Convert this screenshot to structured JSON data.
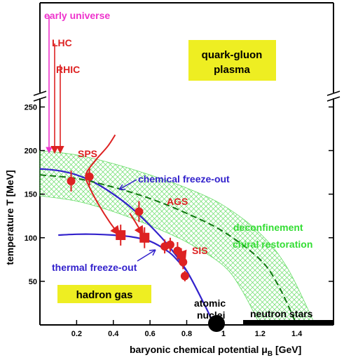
{
  "chart_data": {
    "type": "scatter",
    "title": "",
    "xlabel": "baryonic chemical potential μ_B [GeV]",
    "ylabel": "temperature T [MeV]",
    "xlim": [
      0,
      1.6
    ],
    "ylim": [
      0,
      260
    ],
    "y_axis_break": "above 260 MeV (broken axis)",
    "x_ticks": [
      0.2,
      0.4,
      0.6,
      0.8,
      1,
      1.2,
      1.4
    ],
    "y_ticks": [
      50,
      100,
      150,
      200,
      250
    ],
    "grid": false,
    "legend": "none",
    "region_labels": {
      "qgp_line1": "quark-gluon",
      "qgp_line2": "plasma",
      "hadron_gas": "hadron gas",
      "deconfinement": "deconfinement",
      "chiral": "chiral restoration",
      "atomic_line1": "atomic",
      "atomic_line2": "nuclei",
      "neutron_stars": "neutron stars"
    },
    "annotations": {
      "early_universe": "early universe",
      "lhc": "LHC",
      "rhic": "RHIC",
      "sps": "SPS",
      "ags": "AGS",
      "sis": "SIS",
      "chemical_freezeout": "chemical freeze-out",
      "thermal_freezeout": "thermal freeze-out"
    },
    "series": [
      {
        "name": "chemical freeze-out",
        "kind": "curve",
        "color": "#3322cc",
        "x": [
          0,
          0.1,
          0.2,
          0.3,
          0.4,
          0.5,
          0.6,
          0.7,
          0.8,
          0.9,
          0.95
        ],
        "y": [
          179,
          177,
          172,
          163,
          150,
          134,
          114,
          91,
          62,
          22,
          0
        ]
      },
      {
        "name": "thermal freeze-out",
        "kind": "curve",
        "color": "#3322cc",
        "x": [
          0.1,
          0.2,
          0.3,
          0.4,
          0.5,
          0.6,
          0.7,
          0.75,
          0.8
        ],
        "y": [
          103,
          104,
          104,
          103,
          101,
          96,
          84,
          74,
          62
        ]
      },
      {
        "name": "deconfinement / chiral restoration",
        "kind": "curve-dashed",
        "color": "#117711",
        "x": [
          0,
          0.2,
          0.4,
          0.6,
          0.8,
          1.0,
          1.2,
          1.3,
          1.4
        ],
        "y": [
          172,
          168,
          158,
          145,
          128,
          107,
          75,
          45,
          0
        ]
      },
      {
        "name": "chemical freeze-out points",
        "kind": "circles",
        "color": "#dd2222",
        "x": [
          0.17,
          0.27,
          0.54,
          0.68,
          0.71,
          0.75,
          0.77,
          0.78,
          0.79
        ],
        "y": [
          165,
          170,
          130,
          90,
          92,
          85,
          80,
          72,
          56
        ],
        "err": [
          12,
          10,
          12,
          8,
          8,
          10,
          8,
          8,
          6
        ]
      },
      {
        "name": "thermal freeze-out points",
        "kind": "squares",
        "color": "#dd2222",
        "x": [
          0.44,
          0.57
        ],
        "y": [
          103,
          100
        ],
        "err": [
          12,
          12
        ]
      },
      {
        "name": "collision trajectory",
        "kind": "arrow",
        "color": "#dd2222",
        "x": [
          0.41,
          0.37,
          0.3,
          0.25,
          0.27,
          0.32,
          0.38,
          0.43
        ],
        "y": [
          218,
          205,
          188,
          172,
          158,
          138,
          118,
          104
        ]
      },
      {
        "name": "AGS trajectory",
        "kind": "arrow",
        "color": "#dd2222",
        "x": [
          0.49,
          0.52,
          0.56
        ],
        "y": [
          128,
          118,
          104
        ]
      },
      {
        "name": "SIS trajectory",
        "kind": "arrow",
        "color": "#dd2222",
        "x": [
          0.76,
          0.78,
          0.79
        ],
        "y": [
          88,
          82,
          76
        ]
      }
    ]
  }
}
